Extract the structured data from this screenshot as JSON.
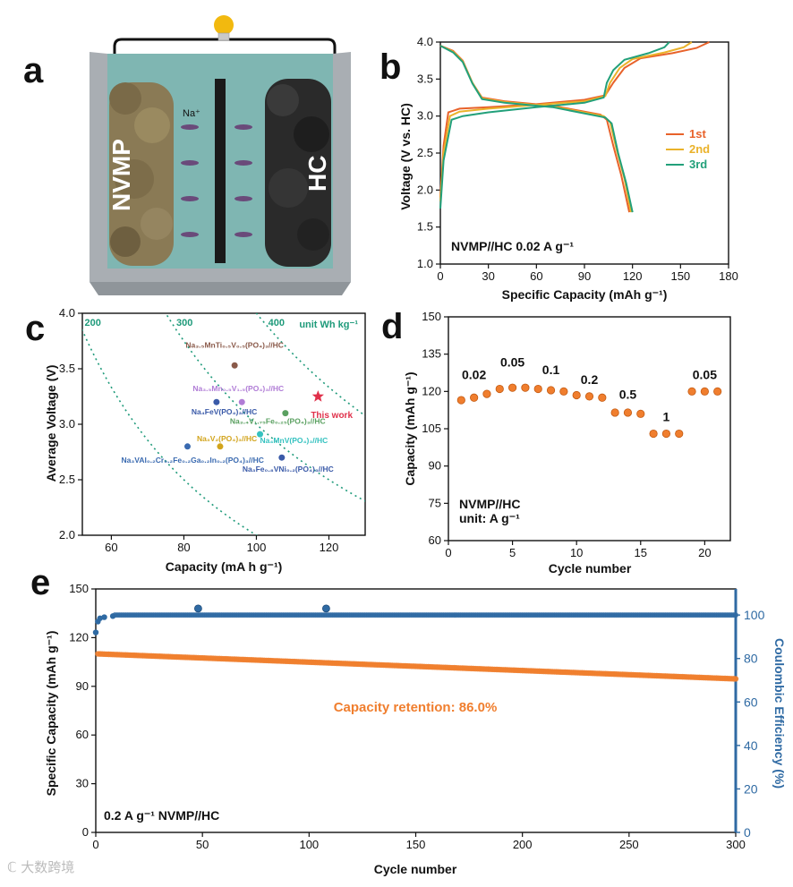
{
  "panels": {
    "a": {
      "letter": "a",
      "left_label": "NVMP",
      "right_label": "HC",
      "ion_label": "Na⁺",
      "colors": {
        "electrolyte": "#7fb6b2",
        "left_electrode": "#8a7a55",
        "right_electrode": "#2a2a2a",
        "bulb": "#f2b90f",
        "container": "#a9aeb3"
      }
    },
    "b": {
      "letter": "b"
    },
    "c": {
      "letter": "c"
    },
    "d": {
      "letter": "d"
    },
    "e": {
      "letter": "e"
    }
  },
  "chart_data": [
    {
      "panel": "b",
      "type": "line",
      "xlabel": "Specific Capacity (mAh g⁻¹)",
      "ylabel": "Voltage (V vs. HC)",
      "xlim": [
        0,
        180
      ],
      "ylim": [
        1.0,
        4.0
      ],
      "xticks": [
        "0",
        "30",
        "60",
        "90",
        "120",
        "150",
        "180"
      ],
      "yticks": [
        "1.0",
        "1.5",
        "2.0",
        "2.5",
        "3.0",
        "3.5",
        "4.0"
      ],
      "annotation": "NVMP//HC 0.02 A g⁻¹",
      "legend_position": "right",
      "series": [
        {
          "name": "1st",
          "color": "#e8622a",
          "charge": [
            [
              0,
              1.9
            ],
            [
              2,
              2.6
            ],
            [
              5,
              3.05
            ],
            [
              12,
              3.1
            ],
            [
              30,
              3.12
            ],
            [
              60,
              3.16
            ],
            [
              90,
              3.22
            ],
            [
              103,
              3.28
            ],
            [
              108,
              3.45
            ],
            [
              115,
              3.65
            ],
            [
              125,
              3.78
            ],
            [
              145,
              3.85
            ],
            [
              160,
              3.92
            ],
            [
              168,
              4.0
            ]
          ],
          "discharge": [
            [
              0,
              3.95
            ],
            [
              8,
              3.88
            ],
            [
              14,
              3.75
            ],
            [
              20,
              3.45
            ],
            [
              26,
              3.25
            ],
            [
              40,
              3.2
            ],
            [
              70,
              3.14
            ],
            [
              100,
              3.02
            ],
            [
              104,
              2.95
            ],
            [
              108,
              2.6
            ],
            [
              113,
              2.2
            ],
            [
              118,
              1.7
            ]
          ]
        },
        {
          "name": "2nd",
          "color": "#eab22a",
          "charge": [
            [
              0,
              1.85
            ],
            [
              2,
              2.5
            ],
            [
              6,
              3.0
            ],
            [
              12,
              3.06
            ],
            [
              30,
              3.1
            ],
            [
              60,
              3.15
            ],
            [
              90,
              3.2
            ],
            [
              103,
              3.27
            ],
            [
              106,
              3.45
            ],
            [
              112,
              3.65
            ],
            [
              120,
              3.77
            ],
            [
              140,
              3.86
            ],
            [
              152,
              3.93
            ],
            [
              157,
              4.0
            ]
          ],
          "discharge": [
            [
              0,
              3.95
            ],
            [
              8,
              3.87
            ],
            [
              14,
              3.74
            ],
            [
              20,
              3.45
            ],
            [
              26,
              3.24
            ],
            [
              40,
              3.19
            ],
            [
              70,
              3.13
            ],
            [
              102,
              3.0
            ],
            [
              106,
              2.92
            ],
            [
              110,
              2.55
            ],
            [
              115,
              2.15
            ],
            [
              119,
              1.7
            ]
          ]
        },
        {
          "name": "3rd",
          "color": "#22a07a",
          "charge": [
            [
              0,
              1.75
            ],
            [
              2,
              2.4
            ],
            [
              7,
              2.95
            ],
            [
              14,
              3.0
            ],
            [
              30,
              3.05
            ],
            [
              60,
              3.12
            ],
            [
              90,
              3.18
            ],
            [
              102,
              3.25
            ],
            [
              104,
              3.45
            ],
            [
              108,
              3.62
            ],
            [
              115,
              3.76
            ],
            [
              130,
              3.85
            ],
            [
              140,
              3.93
            ],
            [
              143,
              4.0
            ]
          ],
          "discharge": [
            [
              0,
              3.95
            ],
            [
              8,
              3.86
            ],
            [
              14,
              3.73
            ],
            [
              20,
              3.44
            ],
            [
              26,
              3.23
            ],
            [
              40,
              3.18
            ],
            [
              70,
              3.12
            ],
            [
              103,
              2.98
            ],
            [
              107,
              2.9
            ],
            [
              111,
              2.5
            ],
            [
              116,
              2.1
            ],
            [
              120,
              1.7
            ]
          ]
        }
      ]
    },
    {
      "panel": "c",
      "type": "scatter",
      "xlabel": "Capacity (mA h g⁻¹)",
      "ylabel": "Average Voltage (V)",
      "xlim": [
        52,
        130
      ],
      "ylim": [
        2.0,
        4.0
      ],
      "xticks": [
        "60",
        "80",
        "100",
        "120"
      ],
      "yticks": [
        "2.0",
        "2.5",
        "3.0",
        "3.5",
        "4.0"
      ],
      "energy_label": "unit Wh kg⁻¹",
      "energy_lines": [
        {
          "value": 200,
          "label": "200"
        },
        {
          "value": 300,
          "label": "300"
        },
        {
          "value": 400,
          "label": "400"
        }
      ],
      "points": [
        {
          "x": 94,
          "y": 3.53,
          "label": "Na₃.₅MnTi₀.₅V₀.₅(PO₄)₃//HC",
          "color": "#8a5a4a",
          "label_dx": 0,
          "label_dy": -20,
          "anchor": "middle",
          "label_color": "#8a5a4a"
        },
        {
          "x": 96,
          "y": 3.2,
          "label": "Na₃.₅Mn₀.₅V₁.₅(PO₄)₃//HC",
          "color": "#b07cd6",
          "label_dx": -4,
          "label_dy": -12,
          "anchor": "middle",
          "label_color": "#b07cd6"
        },
        {
          "x": 89,
          "y": 3.2,
          "label": "Na₄FeV(PO₄)₃//HC",
          "color": "#3a5aa8",
          "label_dx": -28,
          "label_dy": 14,
          "anchor": "start",
          "label_color": "#3a5aa8"
        },
        {
          "x": 117,
          "y": 3.25,
          "label": "This work",
          "color": "#e0304a",
          "label_dx": -8,
          "label_dy": 24,
          "anchor": "start",
          "label_color": "#e0304a",
          "star": true
        },
        {
          "x": 108,
          "y": 3.1,
          "label": "Na₃.₄V₁.₇₅Fe₀.₂₅(PO₄)₃//HC",
          "color": "#5aa060",
          "label_dx": -62,
          "label_dy": 12,
          "anchor": "start",
          "label_color": "#5aa060"
        },
        {
          "x": 101,
          "y": 2.91,
          "label": "Na₄MnV(PO₄)₃//HC",
          "color": "#35c2c0",
          "label_dx": 0,
          "label_dy": 10,
          "anchor": "start",
          "label_color": "#35c2c0"
        },
        {
          "x": 90,
          "y": 2.8,
          "label": "Na₃V₂(PO₄)₃//HC",
          "color": "#d2a41c",
          "label_dx": -26,
          "label_dy": -6,
          "anchor": "start",
          "label_color": "#d2a41c"
        },
        {
          "x": 81,
          "y": 2.8,
          "label": "Na₃VAl₀.₂Cr₀.₂Fe₀.₂Ga₀.₂In₀.₂(PO₄)₃//HC",
          "color": "#3a6ab0",
          "label_dx": -74,
          "label_dy": 18,
          "anchor": "start",
          "label_color": "#3a6ab0"
        },
        {
          "x": 107,
          "y": 2.7,
          "label": "Na₃Fe₀.₈VNi₀.₂(PO₄)₃//HC",
          "color": "#3a5aa8",
          "label_dx": -44,
          "label_dy": 16,
          "anchor": "start",
          "label_color": "#3a5aa8"
        }
      ]
    },
    {
      "panel": "d",
      "type": "scatter",
      "xlabel": "Cycle number",
      "ylabel": "Capacity (mAh g⁻¹)",
      "xlim": [
        0,
        22
      ],
      "ylim": [
        60,
        150
      ],
      "xticks": [
        "0",
        "5",
        "10",
        "15",
        "20"
      ],
      "yticks": [
        "60",
        "75",
        "90",
        "105",
        "120",
        "135",
        "150"
      ],
      "annotation_line1": "NVMP//HC",
      "annotation_line2": "unit: A g⁻¹",
      "rate_labels": [
        {
          "text": "0.02",
          "x": 2,
          "y": 125
        },
        {
          "text": "0.05",
          "x": 5,
          "y": 130
        },
        {
          "text": "0.1",
          "x": 8,
          "y": 127
        },
        {
          "text": "0.2",
          "x": 11,
          "y": 123
        },
        {
          "text": "0.5",
          "x": 14,
          "y": 117
        },
        {
          "text": "1",
          "x": 17,
          "y": 108
        },
        {
          "text": "0.05",
          "x": 20,
          "y": 125
        }
      ],
      "x": [
        1,
        2,
        3,
        4,
        5,
        6,
        7,
        8,
        9,
        10,
        11,
        12,
        13,
        14,
        15,
        16,
        17,
        18,
        19,
        20,
        21
      ],
      "values": [
        116.5,
        117.5,
        119,
        121,
        121.5,
        121.5,
        121,
        120.5,
        120,
        118.5,
        118,
        117.5,
        111.5,
        111.5,
        111,
        103,
        103,
        103,
        120,
        120,
        120
      ],
      "color": "#f07e2e"
    },
    {
      "panel": "e",
      "type": "scatter",
      "xlabel": "Cycle number",
      "ylabel": "Specific Capacity (mAh g⁻¹)",
      "y2label": "Coulombic Efficiency (%)",
      "xlim": [
        0,
        300
      ],
      "ylim": [
        0,
        150
      ],
      "y2lim": [
        0,
        112
      ],
      "xticks": [
        "0",
        "50",
        "100",
        "150",
        "200",
        "250",
        "300"
      ],
      "yticks": [
        "0",
        "30",
        "60",
        "90",
        "120",
        "150"
      ],
      "y2ticks": [
        "0",
        "20",
        "40",
        "60",
        "80",
        "100"
      ],
      "annotation": "Capacity retention: 86.0%",
      "corner_label": "0.2 A g⁻¹ NVMP//HC",
      "capacity_series": {
        "name": "Specific Capacity",
        "color": "#f07e2e",
        "start": 110,
        "end": 94.6
      },
      "efficiency_series": {
        "name": "Coulombic Efficiency",
        "color": "#2f6aa3",
        "first": [
          [
            0,
            92
          ],
          [
            1,
            97
          ],
          [
            2,
            98.5
          ],
          [
            4,
            99
          ],
          [
            8,
            99.5
          ]
        ],
        "plateau": 100,
        "outliers": [
          [
            48,
            103
          ],
          [
            108,
            103
          ]
        ]
      },
      "colors": {
        "right_axis": "#2f6aa3",
        "annotation": "#f07e2e"
      }
    }
  ],
  "watermark": "ℂ 大数跨境"
}
